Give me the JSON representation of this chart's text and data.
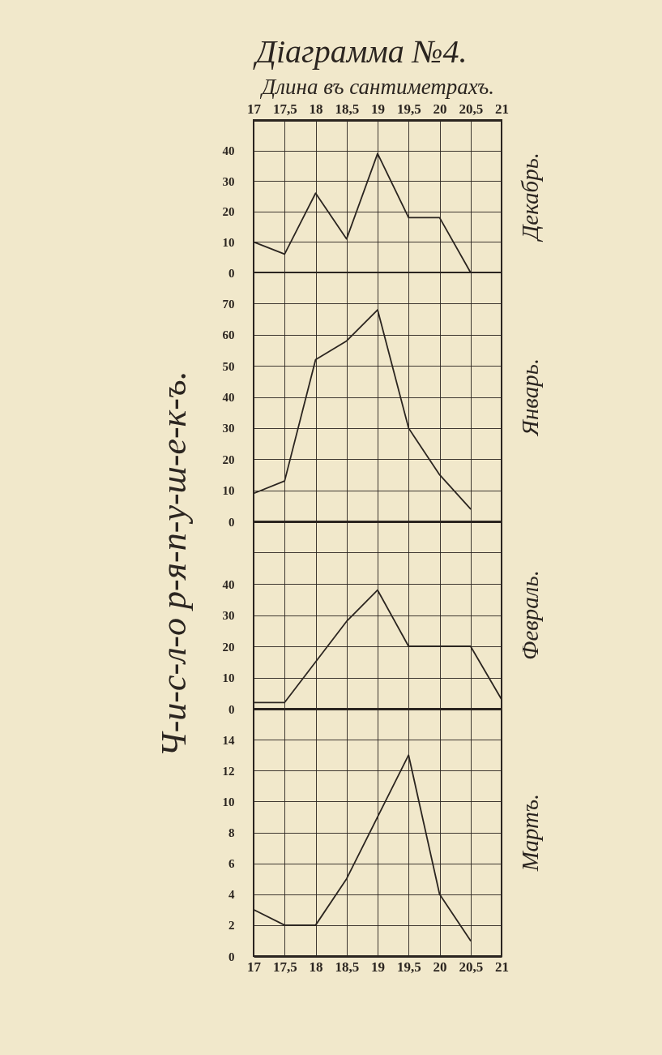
{
  "chart_data": [
    {
      "type": "line",
      "title": "Діаграмма №4.",
      "xlabel": "Длина въ сантиметрахъ.",
      "x": [
        17,
        17.5,
        18,
        18.5,
        19,
        19.5,
        20,
        20.5
      ],
      "series": [
        {
          "name": "Декабрь.",
          "color": "#2b2520",
          "values": [
            10,
            6,
            26,
            11,
            39,
            18,
            18,
            0
          ]
        }
      ],
      "xlim": [
        17,
        21
      ],
      "xticks": [
        17,
        {
          "value": 17.5,
          "label": "17,5"
        },
        18,
        {
          "value": 18.5,
          "label": "18,5"
        },
        19,
        {
          "value": 19.5,
          "label": "19,5"
        },
        20,
        {
          "value": 20.5,
          "label": "20,5"
        },
        21
      ],
      "ylim": [
        0,
        50
      ],
      "yticks": [
        0,
        10,
        20,
        30,
        40
      ],
      "grid": true
    },
    {
      "type": "line",
      "ylabel": "Ч-и-с-л-о р-я-п-у-ш-е-к-ъ.",
      "x": [
        17,
        17.5,
        18,
        18.5,
        19,
        19.5,
        20,
        20.5
      ],
      "series": [
        {
          "name": "Январь.",
          "color": "#2b2520",
          "values": [
            9,
            13,
            52,
            58,
            68,
            30,
            15,
            4
          ]
        }
      ],
      "xlim": [
        17,
        21
      ],
      "xticks": [
        {
          "value": 17,
          "label": null
        },
        {
          "value": 17.5,
          "label": null
        },
        {
          "value": 18,
          "label": null
        },
        {
          "value": 18.5,
          "label": null
        },
        {
          "value": 19,
          "label": null
        },
        {
          "value": 19.5,
          "label": null
        },
        {
          "value": 20,
          "label": null
        },
        {
          "value": 20.5,
          "label": null
        },
        {
          "value": 21,
          "label": null
        }
      ],
      "ylim": [
        0,
        80
      ],
      "yticks": [
        0,
        10,
        20,
        30,
        40,
        50,
        60,
        70
      ],
      "grid": true,
      "tick_labels": "y"
    },
    {
      "type": "line",
      "x": [
        17,
        17.5,
        18,
        18.5,
        19,
        19.5,
        20,
        20.5,
        21
      ],
      "series": [
        {
          "name": "Февраль.",
          "color": "#2b2520",
          "values": [
            2,
            2,
            15,
            28,
            38,
            20,
            20,
            20,
            3
          ]
        }
      ],
      "xlim": [
        17,
        21
      ],
      "xticks": [
        {
          "value": 17,
          "label": null
        },
        {
          "value": 17.5,
          "label": null
        },
        {
          "value": 18,
          "label": null
        },
        {
          "value": 18.5,
          "label": null
        },
        {
          "value": 19,
          "label": null
        },
        {
          "value": 19.5,
          "label": null
        },
        {
          "value": 20,
          "label": null
        },
        {
          "value": 20.5,
          "label": null
        },
        {
          "value": 21,
          "label": null
        }
      ],
      "ylim": [
        0,
        60
      ],
      "yticks": [
        0,
        10,
        20,
        30,
        40,
        {
          "value": 50,
          "label": null
        }
      ],
      "grid": true,
      "tick_labels": "y"
    },
    {
      "type": "line",
      "x": [
        17,
        17.5,
        18,
        18.5,
        19,
        19.5,
        20,
        20.5
      ],
      "series": [
        {
          "name": "Мартъ.",
          "color": "#2b2520",
          "values": [
            3,
            2,
            2,
            5,
            9,
            13,
            4,
            1
          ]
        }
      ],
      "xlim": [
        17,
        21
      ],
      "xticks": [
        17,
        {
          "value": 17.5,
          "label": "17,5"
        },
        18,
        {
          "value": 18.5,
          "label": "18,5"
        },
        19,
        {
          "value": 19.5,
          "label": "19,5"
        },
        20,
        {
          "value": 20.5,
          "label": "20,5"
        },
        21
      ],
      "ylim": [
        0,
        16
      ],
      "yticks": [
        0,
        2,
        4,
        6,
        8,
        10,
        12,
        14
      ],
      "grid": true
    }
  ]
}
